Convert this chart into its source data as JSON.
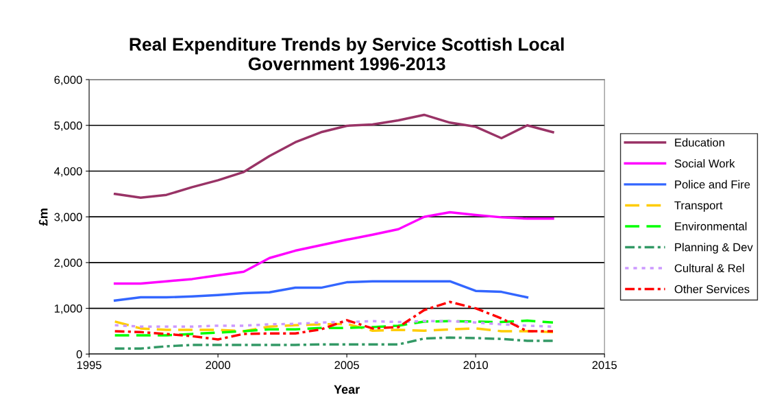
{
  "chart_data": {
    "type": "line",
    "title": "Real Expenditure Trends by Service Scottish Local\nGovernment 1996-2013",
    "xlabel": "Year",
    "ylabel": "£m",
    "x": [
      1996,
      1997,
      1998,
      1999,
      2000,
      2001,
      2002,
      2003,
      2004,
      2005,
      2006,
      2007,
      2008,
      2009,
      2010,
      2011,
      2012,
      2013
    ],
    "xlim": [
      1995,
      2015
    ],
    "xticks": [
      1995,
      2000,
      2005,
      2010,
      2015
    ],
    "ylim": [
      0,
      6000
    ],
    "yticks": [
      {
        "value": 0,
        "label": "0"
      },
      {
        "value": 1000,
        "label": "1,000"
      },
      {
        "value": 2000,
        "label": "2,000"
      },
      {
        "value": 3000,
        "label": "3,000"
      },
      {
        "value": 4000,
        "label": "4,000"
      },
      {
        "value": 5000,
        "label": "5,000"
      },
      {
        "value": 6000,
        "label": "6,000"
      }
    ],
    "grid": "y",
    "legend": "right",
    "marker": "none",
    "series": [
      {
        "name": "Education",
        "color": "#993366",
        "line_style": "solid",
        "values": [
          3500,
          3420,
          3480,
          3650,
          3800,
          3980,
          4330,
          4630,
          4850,
          4990,
          5020,
          5110,
          5230,
          5060,
          4970,
          4720,
          5000,
          4850
        ]
      },
      {
        "name": "Social Work",
        "color": "#ff00ff",
        "line_style": "solid",
        "values": [
          1540,
          1540,
          1590,
          1640,
          1720,
          1800,
          2100,
          2260,
          2380,
          2500,
          2610,
          2730,
          3000,
          3100,
          3040,
          2990,
          2960,
          2960
        ]
      },
      {
        "name": "Police and Fire",
        "color": "#3366ff",
        "line_style": "solid",
        "values": [
          1170,
          1240,
          1240,
          1260,
          1290,
          1330,
          1350,
          1450,
          1450,
          1570,
          1590,
          1590,
          1590,
          1590,
          1380,
          1360,
          1240,
          null
        ]
      },
      {
        "name": "Transport",
        "color": "#ffcc00",
        "line_style": "dashed",
        "values": [
          710,
          560,
          530,
          530,
          530,
          500,
          600,
          630,
          650,
          660,
          510,
          530,
          510,
          540,
          560,
          500,
          500,
          480
        ]
      },
      {
        "name": "Environmental",
        "color": "#00ff00",
        "line_style": "dashed",
        "values": [
          410,
          410,
          410,
          440,
          470,
          500,
          540,
          540,
          570,
          570,
          590,
          620,
          710,
          720,
          710,
          700,
          730,
          690
        ]
      },
      {
        "name": "Planning & Dev",
        "color": "#339966",
        "line_style": "dashdot",
        "values": [
          120,
          120,
          170,
          200,
          200,
          200,
          200,
          200,
          210,
          210,
          210,
          210,
          340,
          360,
          350,
          330,
          290,
          290
        ]
      },
      {
        "name": "Cultural & Rel",
        "color": "#cc99ff",
        "line_style": "dotted",
        "values": [
          630,
          600,
          600,
          600,
          620,
          620,
          650,
          660,
          690,
          700,
          720,
          700,
          720,
          720,
          690,
          650,
          620,
          600
        ]
      },
      {
        "name": "Other Services",
        "color": "#ff0000",
        "line_style": "dashdot",
        "values": [
          500,
          480,
          440,
          390,
          320,
          440,
          450,
          450,
          540,
          740,
          560,
          590,
          960,
          1140,
          1000,
          780,
          500,
          500
        ]
      }
    ]
  }
}
